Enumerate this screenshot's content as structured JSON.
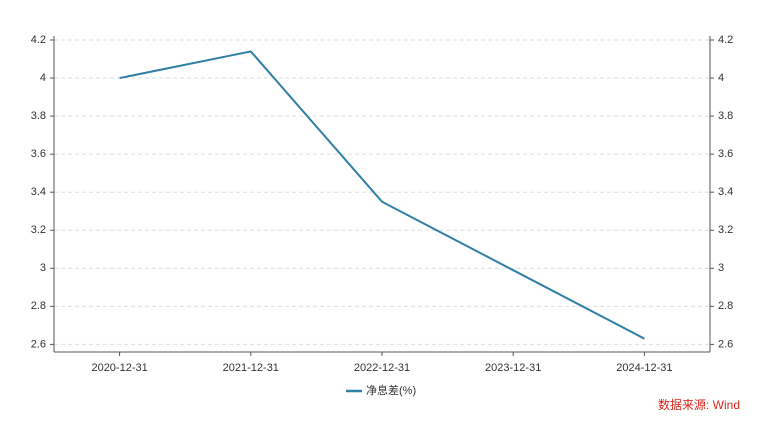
{
  "chart_data": {
    "type": "line",
    "categories": [
      "2020-12-31",
      "2021-12-31",
      "2022-12-31",
      "2023-12-31",
      "2024-12-31"
    ],
    "series": [
      {
        "name": "净息差(%)",
        "color": "#2f7fa6",
        "values": [
          4.0,
          4.14,
          3.35,
          2.99,
          2.63
        ]
      }
    ],
    "ylim": [
      2.56,
      4.2
    ],
    "yticks": [
      2.6,
      2.8,
      3,
      3.2,
      3.4,
      3.6,
      3.8,
      4,
      4.2
    ],
    "y2lim": [
      2.56,
      4.2
    ],
    "y2ticks": [
      2.6,
      2.8,
      3,
      3.2,
      3.4,
      3.6,
      3.8,
      4,
      4.2
    ],
    "grid": true,
    "legend": "bottom",
    "source": "数据来源: Wind"
  }
}
